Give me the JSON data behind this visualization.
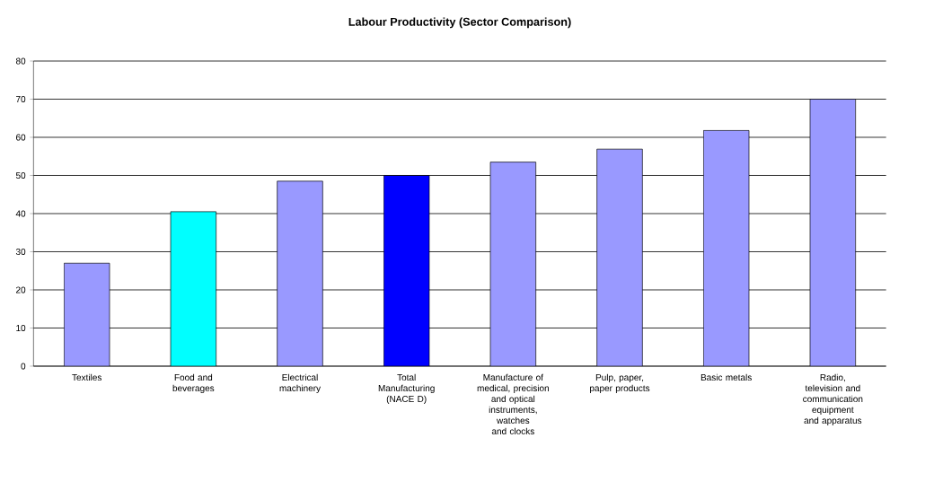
{
  "chart_data": {
    "type": "bar",
    "title": "Labour Productivity (Sector Comparison)",
    "categories": [
      "Textiles",
      "Food and beverages",
      "Electrical machinery",
      "Total Manufacturing (NACE D)",
      "Manufacture of medical, precision and optical instruments, watches and clocks",
      "Pulp, paper, paper products",
      "Basic metals",
      "Radio, television and communication equipment and apparatus"
    ],
    "values": [
      27.0,
      40.5,
      48.5,
      50.0,
      53.5,
      56.9,
      61.8,
      70.0
    ],
    "colors": [
      "#9999ff",
      "#00ffff",
      "#9999ff",
      "#0000ff",
      "#9999ff",
      "#9999ff",
      "#9999ff",
      "#9999ff"
    ],
    "ylim": [
      0,
      80
    ],
    "yticks": [
      0,
      10,
      20,
      30,
      40,
      50,
      60,
      70,
      80
    ],
    "grid": "y"
  }
}
